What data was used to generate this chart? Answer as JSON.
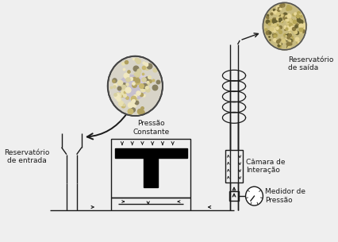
{
  "bg_color": "#efefef",
  "line_color": "#1a1a1a",
  "labels": {
    "reservatorio_entrada": "Reservatório\nde entrada",
    "pressao_constante": "Pressão\nConstante",
    "reservatorio_saida": "Reservatório\nde saída",
    "camara_interacao": "Câmara de\nInteração",
    "medidor_pressao": "Medidor de\nPressão"
  },
  "label_fontsize": 6.5,
  "arrow_color": "#1a1a1a"
}
